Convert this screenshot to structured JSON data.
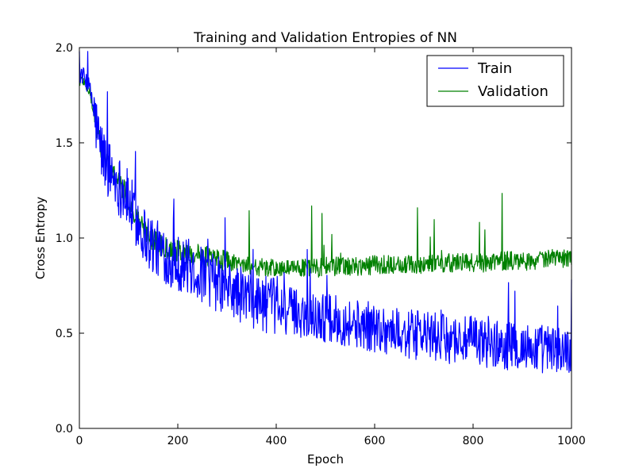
{
  "chart_data": {
    "type": "line",
    "title": "Training and Validation Entropies of NN",
    "xlabel": "Epoch",
    "ylabel": "Cross Entropy",
    "xlim": [
      0,
      1000
    ],
    "ylim": [
      0.0,
      2.0
    ],
    "xticks": [
      "0",
      "200",
      "400",
      "600",
      "800",
      "1000"
    ],
    "yticks": [
      "0.0",
      "0.5",
      "1.0",
      "1.5",
      "2.0"
    ],
    "grid": false,
    "legend_position": "top-right",
    "series": [
      {
        "name": "Train",
        "color": "#0000ff",
        "noise": "high",
        "x": [
          0,
          5,
          10,
          15,
          20,
          25,
          30,
          35,
          40,
          45,
          50,
          55,
          60,
          65,
          70,
          75,
          80,
          85,
          90,
          95,
          100,
          110,
          120,
          130,
          140,
          150,
          160,
          170,
          180,
          190,
          200,
          220,
          240,
          260,
          280,
          300,
          320,
          340,
          360,
          380,
          400,
          420,
          440,
          460,
          480,
          500,
          520,
          540,
          560,
          580,
          600,
          620,
          640,
          660,
          680,
          700,
          720,
          740,
          760,
          780,
          800,
          820,
          840,
          860,
          880,
          900,
          920,
          940,
          960,
          980,
          1000
        ],
        "y": [
          1.85,
          1.86,
          1.84,
          1.82,
          1.79,
          1.74,
          1.66,
          1.58,
          1.51,
          1.46,
          1.42,
          1.39,
          1.36,
          1.34,
          1.32,
          1.3,
          1.28,
          1.26,
          1.24,
          1.22,
          1.19,
          1.13,
          1.08,
          1.03,
          0.99,
          0.96,
          0.94,
          0.92,
          0.9,
          0.88,
          0.87,
          0.85,
          0.82,
          0.79,
          0.76,
          0.73,
          0.71,
          0.69,
          0.67,
          0.65,
          0.64,
          0.62,
          0.61,
          0.6,
          0.59,
          0.58,
          0.57,
          0.56,
          0.55,
          0.54,
          0.53,
          0.52,
          0.51,
          0.5,
          0.49,
          0.49,
          0.48,
          0.47,
          0.47,
          0.46,
          0.46,
          0.45,
          0.44,
          0.44,
          0.43,
          0.43,
          0.42,
          0.42,
          0.41,
          0.41,
          0.4
        ]
      },
      {
        "name": "Validation",
        "color": "#008000",
        "noise": "medium",
        "x": [
          0,
          5,
          10,
          15,
          20,
          25,
          30,
          35,
          40,
          45,
          50,
          55,
          60,
          65,
          70,
          75,
          80,
          85,
          90,
          95,
          100,
          110,
          120,
          130,
          140,
          150,
          160,
          170,
          180,
          190,
          200,
          220,
          240,
          260,
          280,
          300,
          320,
          340,
          360,
          380,
          400,
          420,
          440,
          460,
          480,
          500,
          520,
          540,
          560,
          580,
          600,
          620,
          640,
          660,
          680,
          700,
          720,
          740,
          760,
          780,
          800,
          820,
          840,
          860,
          880,
          900,
          920,
          940,
          960,
          980,
          1000
        ],
        "y": [
          1.82,
          1.83,
          1.82,
          1.8,
          1.77,
          1.72,
          1.65,
          1.58,
          1.52,
          1.47,
          1.43,
          1.4,
          1.37,
          1.35,
          1.33,
          1.31,
          1.29,
          1.27,
          1.25,
          1.23,
          1.2,
          1.14,
          1.09,
          1.05,
          1.02,
          0.99,
          0.97,
          0.96,
          0.95,
          0.94,
          0.93,
          0.92,
          0.91,
          0.9,
          0.89,
          0.88,
          0.87,
          0.86,
          0.85,
          0.84,
          0.84,
          0.84,
          0.84,
          0.84,
          0.84,
          0.85,
          0.85,
          0.85,
          0.85,
          0.85,
          0.86,
          0.86,
          0.86,
          0.86,
          0.86,
          0.86,
          0.87,
          0.87,
          0.87,
          0.87,
          0.87,
          0.87,
          0.88,
          0.88,
          0.88,
          0.88,
          0.88,
          0.89,
          0.89,
          0.89,
          0.9
        ]
      }
    ]
  }
}
